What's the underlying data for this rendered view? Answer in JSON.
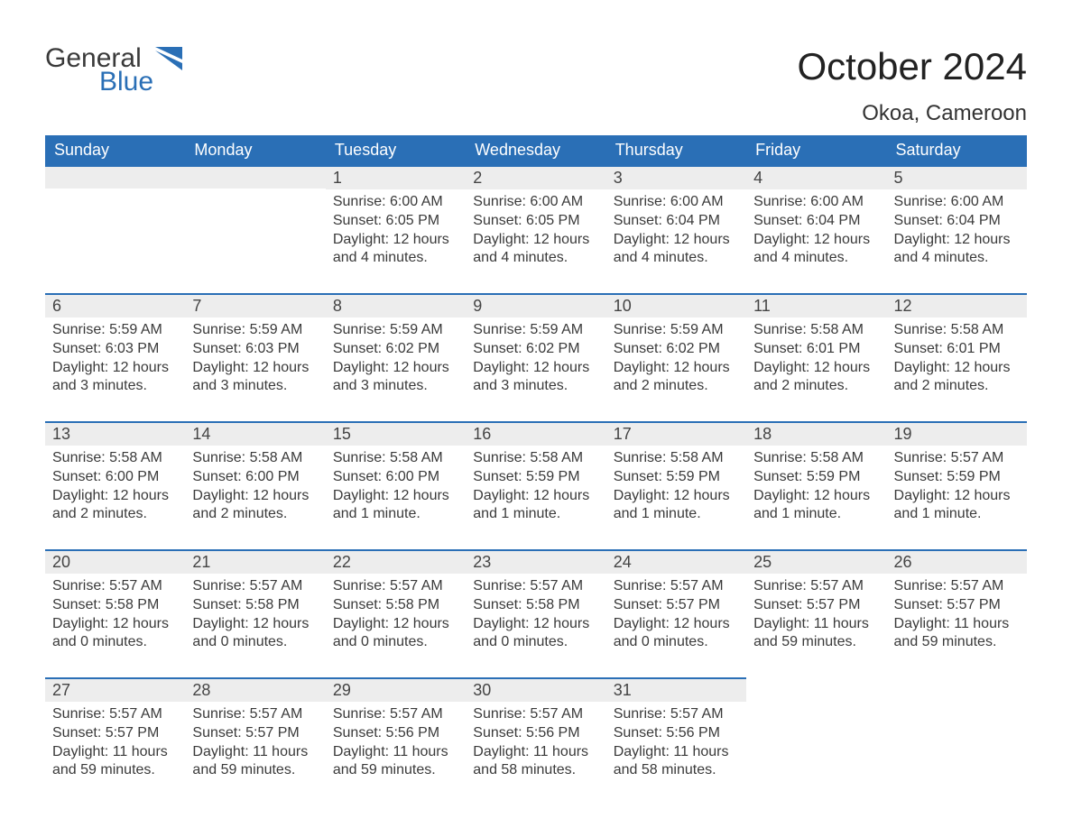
{
  "brand": {
    "name1": "General",
    "name2": "Blue",
    "accent": "#2a6fb6"
  },
  "title": "October 2024",
  "subtitle": "Okoa, Cameroon",
  "weekdays": [
    "Sunday",
    "Monday",
    "Tuesday",
    "Wednesday",
    "Thursday",
    "Friday",
    "Saturday"
  ],
  "calendar": {
    "type": "table",
    "columns": 7,
    "rows": 5,
    "header_bg": "#2a6fb6",
    "header_fg": "#ffffff",
    "daynum_bg": "#ededed",
    "daynum_border_top": "#2a6fb6",
    "body_bg": "#ffffff",
    "text_color": "#3a3a3a",
    "header_fontsize": 18,
    "daynum_fontsize": 18,
    "body_fontsize": 16
  },
  "weeks": [
    [
      null,
      null,
      {
        "n": "1",
        "sr": "Sunrise: 6:00 AM",
        "ss": "Sunset: 6:05 PM",
        "dl": "Daylight: 12 hours and 4 minutes."
      },
      {
        "n": "2",
        "sr": "Sunrise: 6:00 AM",
        "ss": "Sunset: 6:05 PM",
        "dl": "Daylight: 12 hours and 4 minutes."
      },
      {
        "n": "3",
        "sr": "Sunrise: 6:00 AM",
        "ss": "Sunset: 6:04 PM",
        "dl": "Daylight: 12 hours and 4 minutes."
      },
      {
        "n": "4",
        "sr": "Sunrise: 6:00 AM",
        "ss": "Sunset: 6:04 PM",
        "dl": "Daylight: 12 hours and 4 minutes."
      },
      {
        "n": "5",
        "sr": "Sunrise: 6:00 AM",
        "ss": "Sunset: 6:04 PM",
        "dl": "Daylight: 12 hours and 4 minutes."
      }
    ],
    [
      {
        "n": "6",
        "sr": "Sunrise: 5:59 AM",
        "ss": "Sunset: 6:03 PM",
        "dl": "Daylight: 12 hours and 3 minutes."
      },
      {
        "n": "7",
        "sr": "Sunrise: 5:59 AM",
        "ss": "Sunset: 6:03 PM",
        "dl": "Daylight: 12 hours and 3 minutes."
      },
      {
        "n": "8",
        "sr": "Sunrise: 5:59 AM",
        "ss": "Sunset: 6:02 PM",
        "dl": "Daylight: 12 hours and 3 minutes."
      },
      {
        "n": "9",
        "sr": "Sunrise: 5:59 AM",
        "ss": "Sunset: 6:02 PM",
        "dl": "Daylight: 12 hours and 3 minutes."
      },
      {
        "n": "10",
        "sr": "Sunrise: 5:59 AM",
        "ss": "Sunset: 6:02 PM",
        "dl": "Daylight: 12 hours and 2 minutes."
      },
      {
        "n": "11",
        "sr": "Sunrise: 5:58 AM",
        "ss": "Sunset: 6:01 PM",
        "dl": "Daylight: 12 hours and 2 minutes."
      },
      {
        "n": "12",
        "sr": "Sunrise: 5:58 AM",
        "ss": "Sunset: 6:01 PM",
        "dl": "Daylight: 12 hours and 2 minutes."
      }
    ],
    [
      {
        "n": "13",
        "sr": "Sunrise: 5:58 AM",
        "ss": "Sunset: 6:00 PM",
        "dl": "Daylight: 12 hours and 2 minutes."
      },
      {
        "n": "14",
        "sr": "Sunrise: 5:58 AM",
        "ss": "Sunset: 6:00 PM",
        "dl": "Daylight: 12 hours and 2 minutes."
      },
      {
        "n": "15",
        "sr": "Sunrise: 5:58 AM",
        "ss": "Sunset: 6:00 PM",
        "dl": "Daylight: 12 hours and 1 minute."
      },
      {
        "n": "16",
        "sr": "Sunrise: 5:58 AM",
        "ss": "Sunset: 5:59 PM",
        "dl": "Daylight: 12 hours and 1 minute."
      },
      {
        "n": "17",
        "sr": "Sunrise: 5:58 AM",
        "ss": "Sunset: 5:59 PM",
        "dl": "Daylight: 12 hours and 1 minute."
      },
      {
        "n": "18",
        "sr": "Sunrise: 5:58 AM",
        "ss": "Sunset: 5:59 PM",
        "dl": "Daylight: 12 hours and 1 minute."
      },
      {
        "n": "19",
        "sr": "Sunrise: 5:57 AM",
        "ss": "Sunset: 5:59 PM",
        "dl": "Daylight: 12 hours and 1 minute."
      }
    ],
    [
      {
        "n": "20",
        "sr": "Sunrise: 5:57 AM",
        "ss": "Sunset: 5:58 PM",
        "dl": "Daylight: 12 hours and 0 minutes."
      },
      {
        "n": "21",
        "sr": "Sunrise: 5:57 AM",
        "ss": "Sunset: 5:58 PM",
        "dl": "Daylight: 12 hours and 0 minutes."
      },
      {
        "n": "22",
        "sr": "Sunrise: 5:57 AM",
        "ss": "Sunset: 5:58 PM",
        "dl": "Daylight: 12 hours and 0 minutes."
      },
      {
        "n": "23",
        "sr": "Sunrise: 5:57 AM",
        "ss": "Sunset: 5:58 PM",
        "dl": "Daylight: 12 hours and 0 minutes."
      },
      {
        "n": "24",
        "sr": "Sunrise: 5:57 AM",
        "ss": "Sunset: 5:57 PM",
        "dl": "Daylight: 12 hours and 0 minutes."
      },
      {
        "n": "25",
        "sr": "Sunrise: 5:57 AM",
        "ss": "Sunset: 5:57 PM",
        "dl": "Daylight: 11 hours and 59 minutes."
      },
      {
        "n": "26",
        "sr": "Sunrise: 5:57 AM",
        "ss": "Sunset: 5:57 PM",
        "dl": "Daylight: 11 hours and 59 minutes."
      }
    ],
    [
      {
        "n": "27",
        "sr": "Sunrise: 5:57 AM",
        "ss": "Sunset: 5:57 PM",
        "dl": "Daylight: 11 hours and 59 minutes."
      },
      {
        "n": "28",
        "sr": "Sunrise: 5:57 AM",
        "ss": "Sunset: 5:57 PM",
        "dl": "Daylight: 11 hours and 59 minutes."
      },
      {
        "n": "29",
        "sr": "Sunrise: 5:57 AM",
        "ss": "Sunset: 5:56 PM",
        "dl": "Daylight: 11 hours and 59 minutes."
      },
      {
        "n": "30",
        "sr": "Sunrise: 5:57 AM",
        "ss": "Sunset: 5:56 PM",
        "dl": "Daylight: 11 hours and 58 minutes."
      },
      {
        "n": "31",
        "sr": "Sunrise: 5:57 AM",
        "ss": "Sunset: 5:56 PM",
        "dl": "Daylight: 11 hours and 58 minutes."
      },
      null,
      null
    ]
  ]
}
